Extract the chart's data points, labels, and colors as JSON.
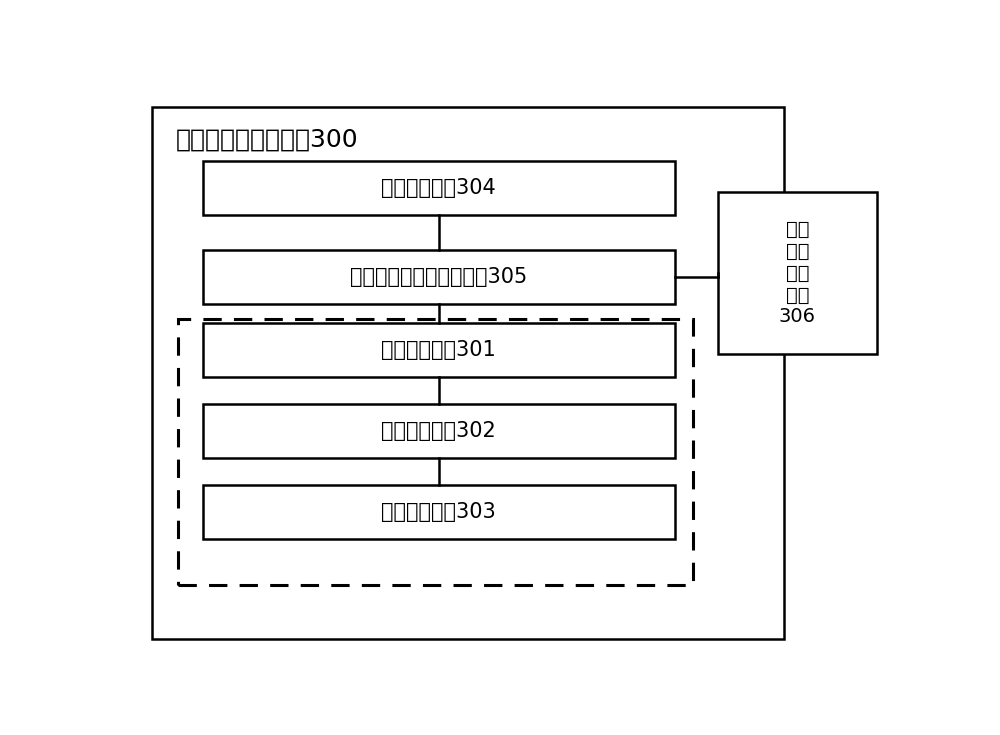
{
  "title": "跨机房集群控制装置300",
  "title_fontsize": 18,
  "box_304_label": "网络共享模块304",
  "box_305_label": "共享空间及计算资源模块305",
  "box_301_label": "任务接收模块301",
  "box_302_label": "机房确定模块302",
  "box_303_label": "任务分配模块303",
  "box_306_label": "存储\n空间\n处理\n模块\n306",
  "bg_color": "#ffffff",
  "box_edge_color": "#000000",
  "box_face_color": "#ffffff",
  "text_color": "#000000",
  "outer_rect_color": "#000000",
  "dashed_rect_color": "#000000",
  "fontsize": 15,
  "small_fontsize": 14,
  "fig_width": 10.0,
  "fig_height": 7.35
}
